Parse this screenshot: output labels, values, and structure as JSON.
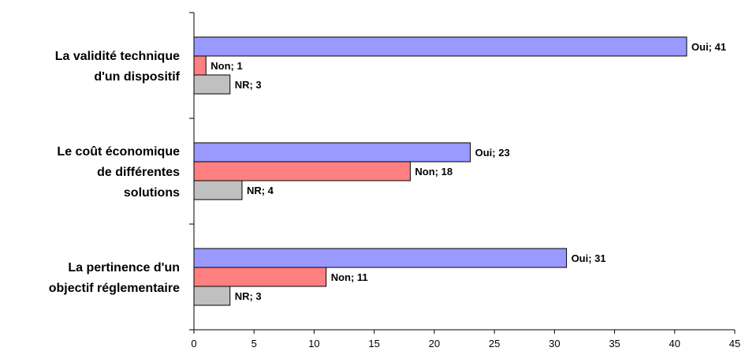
{
  "chart_data": {
    "type": "bar",
    "orientation": "horizontal",
    "title": "",
    "xlabel": "",
    "ylabel": "",
    "xlim": [
      0,
      45
    ],
    "x_ticks": [
      0,
      5,
      10,
      15,
      20,
      25,
      30,
      35,
      40,
      45
    ],
    "grid": false,
    "legend": "none",
    "categories": [
      {
        "lines": [
          "La validité technique",
          "d'un dispositif"
        ]
      },
      {
        "lines": [
          "Le coût économique",
          "de différentes",
          "solutions"
        ]
      },
      {
        "lines": [
          "La pertinence d'un",
          "objectif réglementaire"
        ]
      }
    ],
    "series": [
      {
        "name": "Oui",
        "color": "#9999ff",
        "values": [
          41,
          23,
          31
        ],
        "labels": [
          "Oui; 41",
          "Oui; 23",
          "Oui; 31"
        ]
      },
      {
        "name": "Non",
        "color": "#ff8080",
        "values": [
          1,
          18,
          11
        ],
        "labels": [
          "Non; 1",
          "Non; 18",
          "Non; 11"
        ]
      },
      {
        "name": "NR",
        "color": "#c0c0c0",
        "values": [
          3,
          4,
          3
        ],
        "labels": [
          "NR; 3",
          "NR; 4",
          "NR; 3"
        ]
      }
    ]
  }
}
